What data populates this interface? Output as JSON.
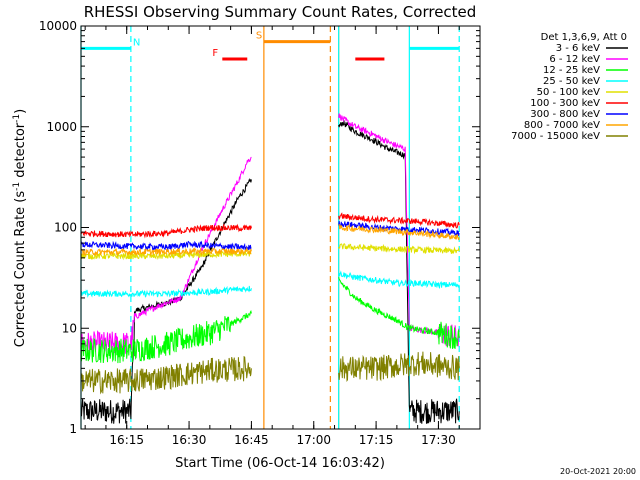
{
  "chart_data": {
    "type": "line",
    "title": "RHESSI Observing Summary Count Rates, Corrected",
    "xlabel": "Start Time (06-Oct-14 16:03:42)",
    "ylabel_main": "Corrected Count Rate (s",
    "ylabel_sup1": "-1",
    "ylabel_mid": " detector",
    "ylabel_sup2": "-1",
    "ylabel_end": ")",
    "yscale": "log",
    "ylim": [
      1,
      10000
    ],
    "xlim": [
      "16:04",
      "17:40"
    ],
    "x_ticks": [
      "16:15",
      "16:30",
      "16:45",
      "17:00",
      "17:15",
      "17:30"
    ],
    "y_ticks": [
      "1",
      "10",
      "100",
      "1000",
      "10000"
    ],
    "footer_date": "20-Oct-2021 20:00",
    "legend": {
      "header": "Det 1,3,6,9, Att 0",
      "placement": "top-right outside",
      "entries": [
        {
          "label": "3 - 6 keV",
          "color": "#000000"
        },
        {
          "label": "6 - 12 keV",
          "color": "#ff00ff"
        },
        {
          "label": "12 - 25 keV",
          "color": "#00ff00"
        },
        {
          "label": "25 - 50 keV",
          "color": "#00ffff"
        },
        {
          "label": "50 - 100 keV",
          "color": "#e0e000"
        },
        {
          "label": "100 - 300 keV",
          "color": "#ff0000"
        },
        {
          "label": "300 - 800 keV",
          "color": "#0000ff"
        },
        {
          "label": "800 - 7000 keV",
          "color": "#ffa500"
        },
        {
          "label": "7000 - 15000 keV",
          "color": "#808000"
        }
      ]
    },
    "flags": [
      {
        "label": "N",
        "color": "#00ffff",
        "start": "16:04",
        "end": "16:16",
        "level": 6000
      },
      {
        "label": "F",
        "color": "#ff0000",
        "start": "16:38",
        "end": "16:44",
        "level": 4700
      },
      {
        "label": "S",
        "color": "#ff8c00",
        "start": "16:48",
        "end": "17:04",
        "level": 7000
      },
      {
        "label": "",
        "color": "#ff0000",
        "start": "17:10",
        "end": "17:17",
        "level": 4700
      },
      {
        "label": "",
        "color": "#00ffff",
        "start": "17:23",
        "end": "17:35",
        "level": 6000
      }
    ],
    "vlines": [
      {
        "t": "16:04",
        "color": "#00ffff",
        "style": "solid"
      },
      {
        "t": "16:16",
        "color": "#00ffff",
        "style": "dashed"
      },
      {
        "t": "16:48",
        "color": "#ff8c00",
        "style": "solid"
      },
      {
        "t": "17:04",
        "color": "#ff8c00",
        "style": "dashed"
      },
      {
        "t": "17:06",
        "color": "#ff8c00",
        "style": "solid"
      },
      {
        "t": "17:06",
        "color": "#00ffff",
        "style": "solid"
      },
      {
        "t": "17:23",
        "color": "#00ffff",
        "style": "solid"
      },
      {
        "t": "17:35",
        "color": "#00ffff",
        "style": "dashed"
      }
    ],
    "series": [
      {
        "name": "3 - 6 keV",
        "color": "#000000",
        "segments": [
          {
            "t": [
              "16:04",
              "16:16",
              "16:17",
              "16:25",
              "16:28",
              "16:33",
              "16:38",
              "16:42",
              "16:44",
              "16:45"
            ],
            "y": [
              1.5,
              1.5,
              15,
              18,
              20,
              40,
              100,
              200,
              260,
              300
            ]
          },
          {
            "t": [
              "17:06",
              "17:07",
              "17:10",
              "17:14",
              "17:18",
              "17:22",
              "17:23",
              "17:30",
              "17:35"
            ],
            "y": [
              1000,
              1100,
              900,
              750,
              600,
              520,
              1.5,
              1.5,
              1.5
            ]
          }
        ]
      },
      {
        "name": "6 - 12 keV",
        "color": "#ff00ff",
        "segments": [
          {
            "t": [
              "16:04",
              "16:16",
              "16:17",
              "16:23",
              "16:28",
              "16:33",
              "16:38",
              "16:42",
              "16:44",
              "16:45"
            ],
            "y": [
              7,
              7,
              13,
              17,
              20,
              60,
              150,
              300,
              450,
              500
            ]
          },
          {
            "t": [
              "17:06",
              "17:07",
              "17:10",
              "17:14",
              "17:18",
              "17:22",
              "17:23",
              "17:30",
              "17:35"
            ],
            "y": [
              1300,
              1200,
              1000,
              850,
              700,
              600,
              10,
              9,
              8
            ]
          }
        ]
      },
      {
        "name": "12 - 25 keV",
        "color": "#00ff00",
        "segments": [
          {
            "t": [
              "16:04",
              "16:16",
              "16:25",
              "16:30",
              "16:35",
              "16:40",
              "16:45"
            ],
            "y": [
              6,
              6,
              7,
              8,
              9,
              11,
              14
            ]
          },
          {
            "t": [
              "17:06",
              "17:10",
              "17:15",
              "17:20",
              "17:23",
              "17:30",
              "17:35"
            ],
            "y": [
              30,
              20,
              15,
              12,
              10,
              9,
              8
            ]
          }
        ]
      },
      {
        "name": "25 - 50 keV",
        "color": "#00ffff",
        "segments": [
          {
            "t": [
              "16:04",
              "16:16",
              "16:25",
              "16:35",
              "16:45"
            ],
            "y": [
              22,
              22,
              22,
              23,
              25
            ]
          },
          {
            "t": [
              "17:06",
              "17:10",
              "17:15",
              "17:20",
              "17:25",
              "17:30",
              "17:35"
            ],
            "y": [
              35,
              32,
              30,
              28,
              28,
              27,
              27
            ]
          }
        ]
      },
      {
        "name": "50 - 100 keV",
        "color": "#e0e000",
        "segments": [
          {
            "t": [
              "16:04",
              "16:16",
              "16:25",
              "16:35",
              "16:45"
            ],
            "y": [
              52,
              52,
              52,
              54,
              55
            ]
          },
          {
            "t": [
              "17:06",
              "17:15",
              "17:25",
              "17:35"
            ],
            "y": [
              65,
              62,
              60,
              58
            ]
          }
        ]
      },
      {
        "name": "100 - 300 keV",
        "color": "#ff0000",
        "segments": [
          {
            "t": [
              "16:04",
              "16:16",
              "16:25",
              "16:30",
              "16:35",
              "16:45"
            ],
            "y": [
              88,
              85,
              88,
              95,
              100,
              98
            ]
          },
          {
            "t": [
              "17:06",
              "17:15",
              "17:25",
              "17:35"
            ],
            "y": [
              130,
              120,
              115,
              105
            ]
          }
        ]
      },
      {
        "name": "300 - 800 keV",
        "color": "#0000ff",
        "segments": [
          {
            "t": [
              "16:04",
              "16:16",
              "16:25",
              "16:30",
              "16:35",
              "16:45"
            ],
            "y": [
              68,
              65,
              64,
              68,
              66,
              63
            ]
          },
          {
            "t": [
              "17:06",
              "17:15",
              "17:25",
              "17:35"
            ],
            "y": [
              110,
              100,
              95,
              88
            ]
          }
        ]
      },
      {
        "name": "800 - 7000 keV",
        "color": "#ffa500",
        "segments": [
          {
            "t": [
              "16:04",
              "16:16",
              "16:30",
              "16:45"
            ],
            "y": [
              57,
              57,
              58,
              58
            ]
          },
          {
            "t": [
              "17:06",
              "17:15",
              "17:25",
              "17:35"
            ],
            "y": [
              100,
              95,
              88,
              80
            ]
          }
        ]
      },
      {
        "name": "7000 - 15000 keV",
        "color": "#808000",
        "segments": [
          {
            "t": [
              "16:04",
              "16:16",
              "16:25",
              "16:35",
              "16:45"
            ],
            "y": [
              3,
              3,
              3.3,
              3.8,
              4
            ]
          },
          {
            "t": [
              "17:06",
              "17:15",
              "17:25",
              "17:35"
            ],
            "y": [
              4,
              4,
              4.5,
              4
            ]
          }
        ]
      }
    ]
  }
}
